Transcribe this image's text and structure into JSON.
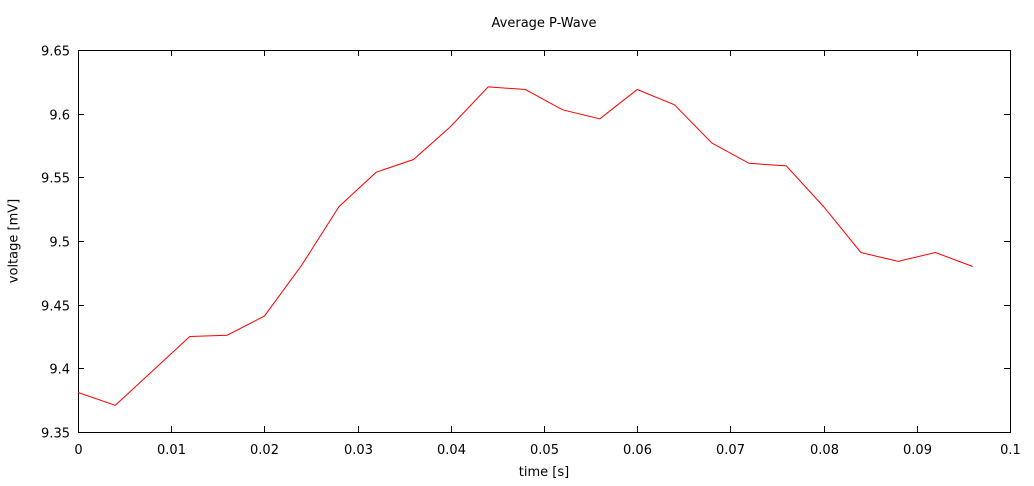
{
  "chart_data": {
    "type": "line",
    "title": "Average P-Wave",
    "xlabel": "time [s]",
    "ylabel": "voltage [mV]",
    "xlim": [
      0,
      0.1
    ],
    "ylim": [
      9.35,
      9.65
    ],
    "xticks": [
      "0",
      "0.01",
      "0.02",
      "0.03",
      "0.04",
      "0.05",
      "0.06",
      "0.07",
      "0.08",
      "0.09",
      "0.1"
    ],
    "yticks": [
      "9.35",
      "9.4",
      "9.45",
      "9.5",
      "9.55",
      "9.6",
      "9.65"
    ],
    "grid": false,
    "legend": "none",
    "series": [
      {
        "color": "#ff0000",
        "x": [
          0,
          0.004,
          0.008,
          0.012,
          0.016,
          0.02,
          0.024,
          0.028,
          0.032,
          0.036,
          0.04,
          0.044,
          0.048,
          0.052,
          0.056,
          0.06,
          0.064,
          0.068,
          0.072,
          0.076,
          0.08,
          0.084,
          0.088,
          0.092,
          0.096
        ],
        "y": [
          9.381,
          9.371,
          9.398,
          9.425,
          9.426,
          9.441,
          9.481,
          9.527,
          9.554,
          9.564,
          9.59,
          9.621,
          9.619,
          9.603,
          9.596,
          9.619,
          9.607,
          9.577,
          9.561,
          9.559,
          9.527,
          9.491,
          9.484,
          9.491,
          9.48
        ]
      }
    ]
  }
}
